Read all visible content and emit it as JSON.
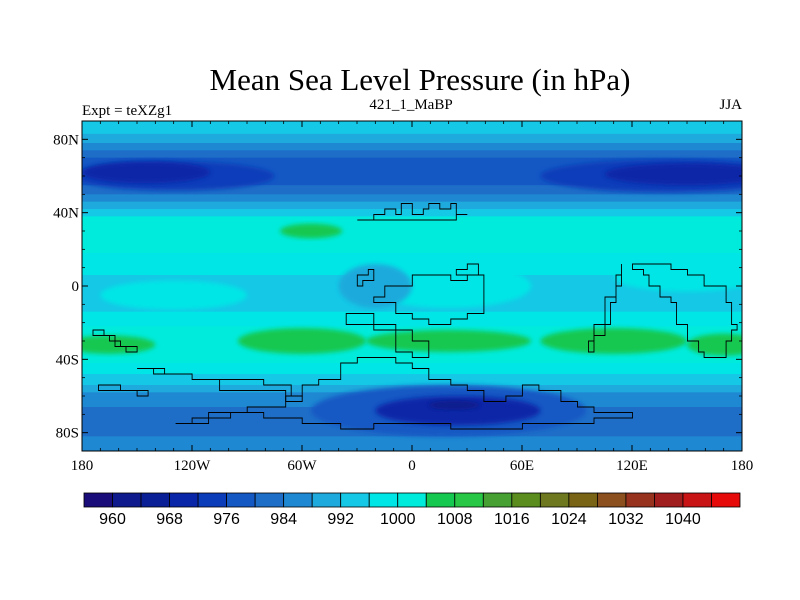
{
  "chart_data": {
    "type": "heatmap",
    "title": "Mean Sea Level Pressure (in hPa)",
    "left_string": "Expt = teXZg1",
    "center_string": "421_1_MaBP",
    "right_string": "JJA",
    "x_ticks": [
      "180",
      "120W",
      "60W",
      "0",
      "60E",
      "120E",
      "180"
    ],
    "x_tick_values": [
      -180,
      -120,
      -60,
      0,
      60,
      120,
      180
    ],
    "y_ticks": [
      "80N",
      "40N",
      "0",
      "40S",
      "80S"
    ],
    "y_tick_values": [
      80,
      40,
      0,
      -40,
      -80
    ],
    "xlim": [
      -180,
      180
    ],
    "ylim": [
      -90,
      90
    ],
    "colorbar_labels": [
      "960",
      "968",
      "976",
      "984",
      "992",
      "1000",
      "1008",
      "1016",
      "1024",
      "1032",
      "1040"
    ],
    "colorbar_label_values": [
      960,
      968,
      976,
      984,
      992,
      1000,
      1008,
      1016,
      1024,
      1032,
      1040
    ],
    "colorbar_levels": [
      956,
      960,
      964,
      968,
      972,
      976,
      980,
      984,
      988,
      992,
      996,
      1000,
      1004,
      1008,
      1012,
      1016,
      1020,
      1024,
      1028,
      1032,
      1036,
      1040,
      1044
    ],
    "colorbar_colors": [
      "#1a0d7a",
      "#0f1a8c",
      "#0a1e96",
      "#0a26a8",
      "#0a3cba",
      "#1458c4",
      "#1e6ec8",
      "#1e88d2",
      "#1eaadc",
      "#14c8e6",
      "#00e6e6",
      "#00ebdc",
      "#14c850",
      "#28c846",
      "#46a032",
      "#5a8c1e",
      "#6e781e",
      "#786414",
      "#8c501e",
      "#96321e",
      "#a01e1e",
      "#c81414",
      "#e60a0a"
    ],
    "field_bands": [
      {
        "lat": [
          90,
          83
        ],
        "value": 992
      },
      {
        "lat": [
          83,
          78
        ],
        "value": 988
      },
      {
        "lat": [
          78,
          74
        ],
        "value": 984
      },
      {
        "lat": [
          74,
          70
        ],
        "value": 980
      },
      {
        "lat": [
          70,
          55
        ],
        "value": 976
      },
      {
        "lat": [
          55,
          50
        ],
        "value": 980
      },
      {
        "lat": [
          50,
          46
        ],
        "value": 984
      },
      {
        "lat": [
          46,
          42
        ],
        "value": 988
      },
      {
        "lat": [
          42,
          38
        ],
        "value": 992
      },
      {
        "lat": [
          38,
          18
        ],
        "value": 1002
      },
      {
        "lat": [
          18,
          6
        ],
        "value": 996
      },
      {
        "lat": [
          6,
          -14
        ],
        "value": 992
      },
      {
        "lat": [
          -14,
          -22
        ],
        "value": 996
      },
      {
        "lat": [
          -22,
          -42
        ],
        "value": 1002
      },
      {
        "lat": [
          -42,
          -48
        ],
        "value": 996
      },
      {
        "lat": [
          -48,
          -54
        ],
        "value": 992
      },
      {
        "lat": [
          -54,
          -58
        ],
        "value": 988
      },
      {
        "lat": [
          -58,
          -66
        ],
        "value": 984
      },
      {
        "lat": [
          -66,
          -82
        ],
        "value": 980
      },
      {
        "lat": [
          -82,
          -90
        ],
        "value": 984
      }
    ],
    "field_blobs": [
      {
        "center": [
          -130,
          60
        ],
        "radius": [
          55,
          8
        ],
        "value": 972
      },
      {
        "center": [
          -145,
          62
        ],
        "radius": [
          35,
          6
        ],
        "value": 968
      },
      {
        "center": [
          140,
          60
        ],
        "radius": [
          70,
          9
        ],
        "value": 972
      },
      {
        "center": [
          150,
          61
        ],
        "radius": [
          45,
          6
        ],
        "value": 968
      },
      {
        "center": [
          -55,
          30
        ],
        "radius": [
          17,
          4
        ],
        "value": 1006
      },
      {
        "center": [
          -60,
          -30
        ],
        "radius": [
          35,
          7
        ],
        "value": 1006
      },
      {
        "center": [
          20,
          -30
        ],
        "radius": [
          45,
          6
        ],
        "value": 1006
      },
      {
        "center": [
          110,
          -30
        ],
        "radius": [
          40,
          7
        ],
        "value": 1006
      },
      {
        "center": [
          -165,
          -32
        ],
        "radius": [
          25,
          5
        ],
        "value": 1006
      },
      {
        "center": [
          170,
          -32
        ],
        "radius": [
          20,
          6
        ],
        "value": 1006
      },
      {
        "center": [
          20,
          0
        ],
        "radius": [
          45,
          12
        ],
        "value": 996
      },
      {
        "center": [
          -130,
          -5
        ],
        "radius": [
          40,
          8
        ],
        "value": 996
      },
      {
        "center": [
          150,
          5
        ],
        "radius": [
          40,
          8
        ],
        "value": 996
      },
      {
        "center": [
          -20,
          0
        ],
        "radius": [
          20,
          12
        ],
        "value": 988
      },
      {
        "center": [
          20,
          -68
        ],
        "radius": [
          75,
          14
        ],
        "value": 976
      },
      {
        "center": [
          25,
          -68
        ],
        "radius": [
          45,
          8
        ],
        "value": 968
      },
      {
        "center": [
          23,
          -65
        ],
        "radius": [
          14,
          2.5
        ],
        "value": 960
      }
    ],
    "land_outlines": [
      [
        [
          -30,
          35
        ],
        [
          -20,
          38
        ],
        [
          -15,
          42
        ],
        [
          -10,
          40
        ],
        [
          -5,
          44
        ],
        [
          0,
          40
        ],
        [
          5,
          42
        ],
        [
          10,
          45
        ],
        [
          15,
          42
        ],
        [
          20,
          44
        ],
        [
          25,
          40
        ],
        [
          30,
          38
        ],
        [
          25,
          35
        ],
        [
          20,
          36
        ],
        [
          10,
          37
        ],
        [
          0,
          36
        ],
        [
          -10,
          36
        ],
        [
          -20,
          35
        ]
      ],
      [
        [
          -15,
          0
        ],
        [
          0,
          5
        ],
        [
          10,
          5
        ],
        [
          20,
          2
        ],
        [
          30,
          5
        ],
        [
          40,
          -5
        ],
        [
          40,
          -15
        ],
        [
          30,
          -18
        ],
        [
          20,
          -20
        ],
        [
          10,
          -18
        ],
        [
          0,
          -15
        ],
        [
          -10,
          -10
        ],
        [
          -20,
          -5
        ]
      ],
      [
        [
          -35,
          -20
        ],
        [
          -20,
          -25
        ],
        [
          -10,
          -35
        ],
        [
          0,
          -40
        ],
        [
          10,
          -38
        ],
        [
          10,
          -30
        ],
        [
          0,
          -25
        ],
        [
          -10,
          -20
        ],
        [
          -20,
          -15
        ]
      ],
      [
        [
          -40,
          -42
        ],
        [
          -30,
          -38
        ],
        [
          -20,
          -40
        ],
        [
          -10,
          -42
        ],
        [
          0,
          -45
        ],
        [
          10,
          -50
        ],
        [
          20,
          -55
        ],
        [
          30,
          -58
        ],
        [
          40,
          -62
        ],
        [
          50,
          -60
        ],
        [
          60,
          -55
        ],
        [
          70,
          -58
        ],
        [
          80,
          -62
        ],
        [
          90,
          -65
        ],
        [
          100,
          -68
        ],
        [
          110,
          -70
        ],
        [
          120,
          -72
        ],
        [
          100,
          -74
        ],
        [
          80,
          -76
        ],
        [
          60,
          -78
        ],
        [
          40,
          -78
        ],
        [
          20,
          -76
        ],
        [
          0,
          -76
        ],
        [
          -20,
          -78
        ],
        [
          -40,
          -76
        ],
        [
          -60,
          -72
        ],
        [
          -80,
          -70
        ],
        [
          -100,
          -72
        ],
        [
          -120,
          -74
        ],
        [
          -130,
          -74
        ],
        [
          -110,
          -70
        ],
        [
          -90,
          -66
        ],
        [
          -70,
          -60
        ],
        [
          -60,
          -55
        ],
        [
          -50,
          -50
        ]
      ],
      [
        [
          -150,
          -45
        ],
        [
          -135,
          -48
        ],
        [
          -120,
          -52
        ],
        [
          -105,
          -56
        ],
        [
          -90,
          -56
        ],
        [
          -80,
          -58
        ],
        [
          -70,
          -62
        ],
        [
          -60,
          -60
        ],
        [
          -65,
          -54
        ],
        [
          -80,
          -52
        ],
        [
          -100,
          -50
        ],
        [
          -120,
          -48
        ],
        [
          -140,
          -44
        ]
      ],
      [
        [
          95,
          -30
        ],
        [
          100,
          -20
        ],
        [
          105,
          -5
        ],
        [
          110,
          5
        ],
        [
          115,
          12
        ],
        [
          115,
          0
        ],
        [
          110,
          -10
        ],
        [
          108,
          -20
        ],
        [
          105,
          -28
        ],
        [
          100,
          -35
        ]
      ],
      [
        [
          120,
          10
        ],
        [
          125,
          5
        ],
        [
          130,
          0
        ],
        [
          135,
          -5
        ],
        [
          140,
          -10
        ],
        [
          145,
          -20
        ],
        [
          150,
          -30
        ],
        [
          155,
          -35
        ],
        [
          160,
          -40
        ],
        [
          165,
          -38
        ],
        [
          170,
          -30
        ],
        [
          175,
          -25
        ],
        [
          178,
          -20
        ],
        [
          175,
          -10
        ],
        [
          170,
          0
        ],
        [
          160,
          5
        ],
        [
          150,
          10
        ],
        [
          140,
          12
        ],
        [
          130,
          12
        ]
      ],
      [
        [
          -175,
          -25
        ],
        [
          -168,
          -28
        ],
        [
          -162,
          -32
        ],
        [
          -155,
          -35
        ],
        [
          -150,
          -32
        ],
        [
          -158,
          -30
        ],
        [
          -165,
          -28
        ]
      ],
      [
        [
          -170,
          -55
        ],
        [
          -160,
          -58
        ],
        [
          -150,
          -60
        ],
        [
          -145,
          -58
        ],
        [
          -155,
          -56
        ]
      ],
      [
        [
          -30,
          5
        ],
        [
          -25,
          10
        ],
        [
          -20,
          8
        ],
        [
          -22,
          2
        ],
        [
          -28,
          0
        ]
      ],
      [
        [
          25,
          10
        ],
        [
          30,
          12
        ],
        [
          35,
          10
        ],
        [
          35,
          5
        ],
        [
          28,
          6
        ]
      ]
    ],
    "grid": false,
    "legend": "bottom"
  }
}
